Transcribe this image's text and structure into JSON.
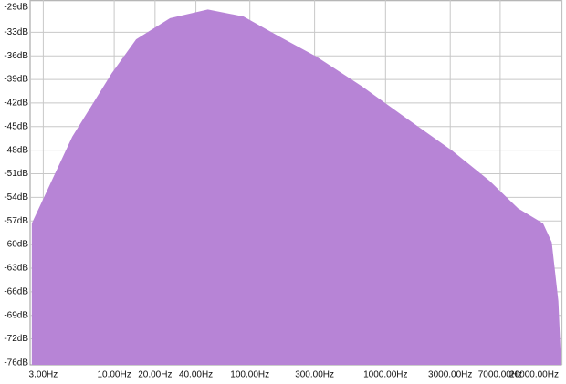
{
  "chart_data": {
    "type": "area",
    "color": "#b784d6",
    "xscale": "log",
    "grid": true,
    "x": [
      2.47,
      4.9,
      9.6,
      14.5,
      25.8,
      49,
      90,
      167,
      310,
      674,
      1440,
      3120,
      5850,
      9500,
      14500,
      16800,
      18800,
      19700
    ],
    "values": [
      -57.3,
      -46.3,
      -38.2,
      -33.9,
      -31.2,
      -30.1,
      -31,
      -33.6,
      -36.1,
      -39.9,
      -44,
      -48.1,
      -51.9,
      -55.4,
      -57.3,
      -59.7,
      -67.2,
      -75.1
    ],
    "xlim": [
      2.4,
      19800
    ],
    "ylim": [
      -28.9,
      -75.3
    ],
    "xticks": [
      {
        "value": 3,
        "label": "3.00Hz"
      },
      {
        "value": 10,
        "label": "10.00Hz"
      },
      {
        "value": 20,
        "label": "20.00Hz"
      },
      {
        "value": 40,
        "label": "40.00Hz"
      },
      {
        "value": 100,
        "label": "100.00Hz"
      },
      {
        "value": 300,
        "label": "300.00Hz"
      },
      {
        "value": 1000,
        "label": "1000.00Hz"
      },
      {
        "value": 3000,
        "label": "3000.00Hz"
      },
      {
        "value": 7000,
        "label": "7000.00Hz"
      },
      {
        "value": 20000,
        "label": "20000.00Hz"
      }
    ],
    "yticks": [
      {
        "value": -29,
        "label": "-29dB"
      },
      {
        "value": -33,
        "label": "-33dB"
      },
      {
        "value": -36,
        "label": "-36dB"
      },
      {
        "value": -39,
        "label": "-39dB"
      },
      {
        "value": -42,
        "label": "-42dB"
      },
      {
        "value": -45,
        "label": "-45dB"
      },
      {
        "value": -48,
        "label": "-48dB"
      },
      {
        "value": -51,
        "label": "-51dB"
      },
      {
        "value": -54,
        "label": "-54dB"
      },
      {
        "value": -57,
        "label": "-57dB"
      },
      {
        "value": -60,
        "label": "-60dB"
      },
      {
        "value": -63,
        "label": "-63dB"
      },
      {
        "value": -66,
        "label": "-66dB"
      },
      {
        "value": -69,
        "label": "-69dB"
      },
      {
        "value": -72,
        "label": "-72dB"
      },
      {
        "value": -76,
        "label": "-76dB"
      }
    ]
  }
}
